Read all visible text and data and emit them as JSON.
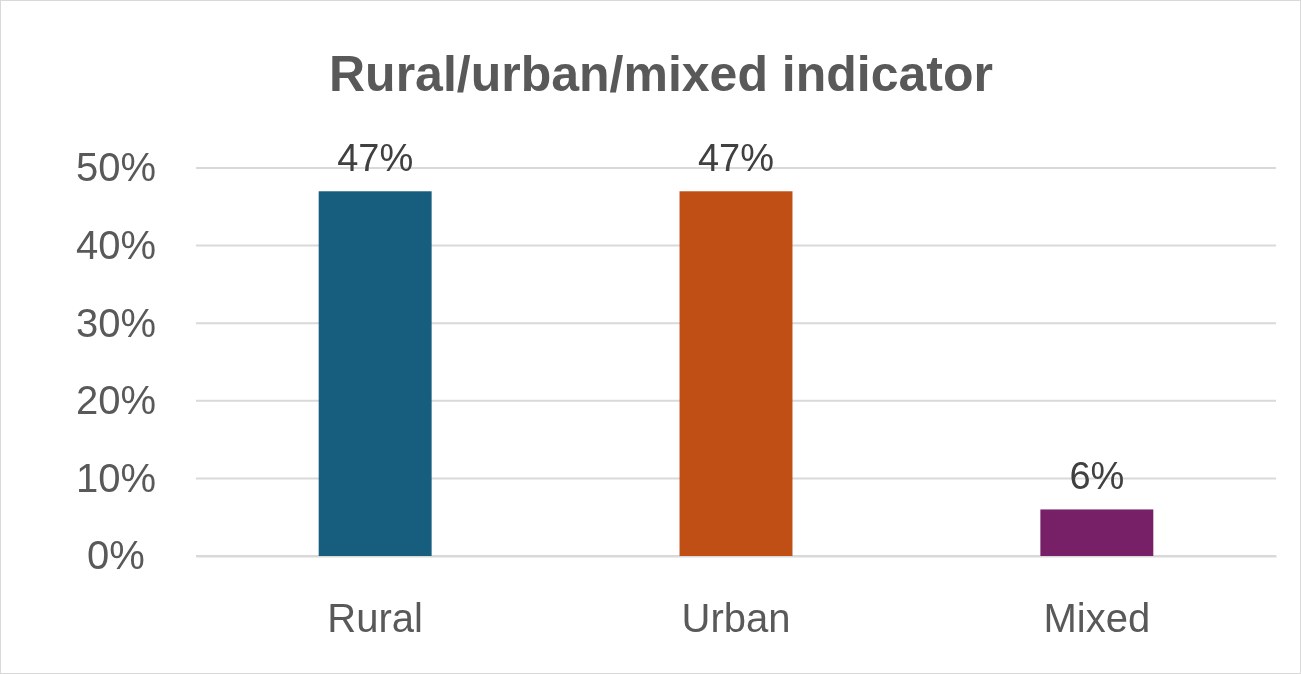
{
  "chart_data": {
    "type": "bar",
    "title": "Rural/urban/mixed indicator",
    "categories": [
      "Rural",
      "Urban",
      "Mixed"
    ],
    "values": [
      47,
      47,
      6
    ],
    "colors": [
      "#175e7e",
      "#c04f15",
      "#772068"
    ],
    "value_labels": [
      "47%",
      "47%",
      "6%"
    ],
    "ylim": [
      0,
      50
    ],
    "yticks": [
      {
        "value": 0,
        "label": "0%"
      },
      {
        "value": 10,
        "label": "10%"
      },
      {
        "value": 20,
        "label": "20%"
      },
      {
        "value": 30,
        "label": "30%"
      },
      {
        "value": 40,
        "label": "40%"
      },
      {
        "value": 50,
        "label": "50%"
      }
    ],
    "grid": "y"
  }
}
